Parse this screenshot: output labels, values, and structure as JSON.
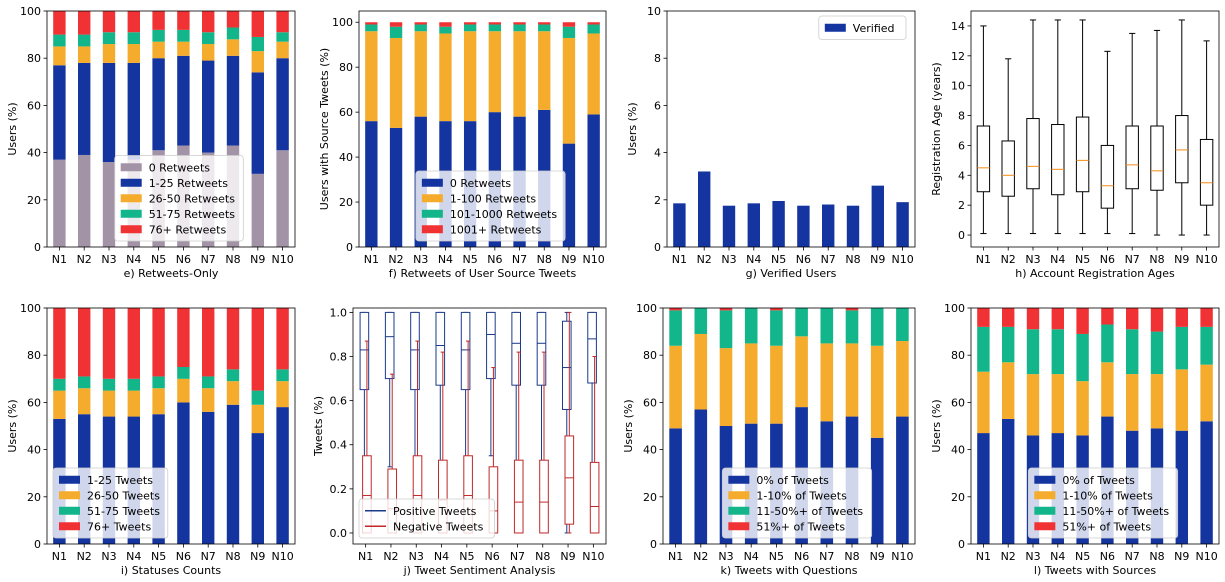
{
  "colors": {
    "gray": "#a393a6",
    "blue": "#1434a0",
    "orange": "#f5ac2d",
    "teal": "#13b68a",
    "red": "#f03234",
    "box": "#000000",
    "median": "#f58b18",
    "pos_box": "#1a3a8a",
    "neg_box": "#c0282a"
  },
  "chart_data": [
    {
      "id": "e",
      "type": "bar",
      "stacked": true,
      "xlabel": "e) Retweets-Only",
      "ylabel": "Users (%)",
      "ylim": [
        0,
        100
      ],
      "yticks": [
        0,
        20,
        40,
        60,
        80,
        100
      ],
      "categories": [
        "N1",
        "N2",
        "N3",
        "N4",
        "N5",
        "N6",
        "N7",
        "N8",
        "N9",
        "N10"
      ],
      "legend_loc": "lower-center",
      "series": [
        {
          "name": "0 Retweets",
          "color": "gray",
          "values": [
            37,
            39,
            36,
            37,
            41,
            43,
            40,
            43,
            31,
            41
          ]
        },
        {
          "name": "1-25 Retweets",
          "color": "blue",
          "values": [
            40,
            39,
            42,
            41,
            39,
            38,
            39,
            38,
            43,
            39
          ]
        },
        {
          "name": "26-50 Retweets",
          "color": "orange",
          "values": [
            8,
            7,
            8,
            8,
            7,
            6,
            7,
            7,
            9,
            7
          ]
        },
        {
          "name": "51-75 Retweets",
          "color": "teal",
          "values": [
            5,
            5,
            5,
            5,
            5,
            5,
            5,
            5,
            6,
            4
          ]
        },
        {
          "name": "76+ Retweets",
          "color": "red",
          "values": [
            10,
            10,
            9,
            9,
            8,
            8,
            9,
            7,
            11,
            9
          ]
        }
      ]
    },
    {
      "id": "f",
      "type": "bar",
      "stacked": true,
      "xlabel": "f) Retweets of User Source Tweets",
      "ylabel": "Users with Source Tweets (%)",
      "ylim": [
        0,
        105
      ],
      "yticks": [
        0,
        20,
        40,
        60,
        80,
        100
      ],
      "categories": [
        "N1",
        "N2",
        "N3",
        "N4",
        "N5",
        "N6",
        "N7",
        "N8",
        "N9",
        "N10"
      ],
      "legend_loc": "lower-center",
      "series": [
        {
          "name": "0 Retweets",
          "color": "blue",
          "values": [
            56,
            53,
            58,
            56,
            56,
            60,
            58,
            61,
            46,
            59
          ]
        },
        {
          "name": "1-100 Retweets",
          "color": "orange",
          "values": [
            40,
            40,
            38,
            39,
            40,
            36,
            38,
            35,
            47,
            36
          ]
        },
        {
          "name": "101-1000 Retweets",
          "color": "teal",
          "values": [
            3,
            5,
            3,
            3,
            3,
            3,
            3,
            3,
            5,
            4
          ]
        },
        {
          "name": "1001+ Retweets",
          "color": "red",
          "values": [
            1,
            2,
            1,
            2,
            1,
            1,
            1,
            1,
            2,
            1
          ]
        }
      ]
    },
    {
      "id": "g",
      "type": "bar",
      "stacked": false,
      "xlabel": "g) Verified Users",
      "ylabel": "Users (%)",
      "ylim": [
        0,
        10
      ],
      "yticks": [
        0,
        2,
        4,
        6,
        8,
        10
      ],
      "categories": [
        "N1",
        "N2",
        "N3",
        "N4",
        "N5",
        "N6",
        "N7",
        "N8",
        "N9",
        "N10"
      ],
      "legend_loc": "upper-right",
      "series": [
        {
          "name": "Verified",
          "color": "blue",
          "values": [
            1.85,
            3.2,
            1.75,
            1.85,
            1.95,
            1.75,
            1.8,
            1.75,
            2.6,
            1.9
          ]
        }
      ]
    },
    {
      "id": "h",
      "type": "box",
      "xlabel": "h) Account Registration Ages",
      "ylabel": "Registration Age (years)",
      "ylim": [
        -0.8,
        15
      ],
      "yticks": [
        0,
        2,
        4,
        6,
        8,
        10,
        12,
        14
      ],
      "categories": [
        "N1",
        "N2",
        "N3",
        "N4",
        "N5",
        "N6",
        "N7",
        "N8",
        "N9",
        "N10"
      ],
      "boxes": [
        {
          "min": 0.1,
          "q1": 2.9,
          "median": 4.5,
          "q3": 7.3,
          "max": 14.0
        },
        {
          "min": 0.1,
          "q1": 2.6,
          "median": 4.0,
          "q3": 6.3,
          "max": 11.8
        },
        {
          "min": 0.1,
          "q1": 3.1,
          "median": 4.6,
          "q3": 7.8,
          "max": 14.4
        },
        {
          "min": 0.1,
          "q1": 2.7,
          "median": 4.4,
          "q3": 7.4,
          "max": 14.4
        },
        {
          "min": 0.1,
          "q1": 2.9,
          "median": 5.0,
          "q3": 7.9,
          "max": 14.4
        },
        {
          "min": 0.1,
          "q1": 1.8,
          "median": 3.3,
          "q3": 6.0,
          "max": 12.3
        },
        {
          "min": 0.1,
          "q1": 3.1,
          "median": 4.7,
          "q3": 7.3,
          "max": 13.5
        },
        {
          "min": 0.0,
          "q1": 3.0,
          "median": 4.3,
          "q3": 7.3,
          "max": 13.7
        },
        {
          "min": 0.0,
          "q1": 3.5,
          "median": 5.7,
          "q3": 8.0,
          "max": 14.4
        },
        {
          "min": 0.0,
          "q1": 2.0,
          "median": 3.5,
          "q3": 6.4,
          "max": 13.0
        }
      ]
    },
    {
      "id": "i",
      "type": "bar",
      "stacked": true,
      "xlabel": "i) Statuses Counts",
      "ylabel": "Users (%)",
      "ylim": [
        0,
        100
      ],
      "yticks": [
        0,
        20,
        40,
        60,
        80,
        100
      ],
      "categories": [
        "N1",
        "N2",
        "N3",
        "N4",
        "N5",
        "N6",
        "N7",
        "N8",
        "N9",
        "N10"
      ],
      "legend_loc": "lower-left",
      "series": [
        {
          "name": "1-25 Tweets",
          "color": "blue",
          "values": [
            53,
            55,
            54,
            54,
            55,
            60,
            56,
            59,
            47,
            58
          ]
        },
        {
          "name": "26-50 Tweets",
          "color": "orange",
          "values": [
            12,
            11,
            11,
            11,
            11,
            10,
            10,
            10,
            12,
            11
          ]
        },
        {
          "name": "51-75 Tweets",
          "color": "teal",
          "values": [
            5,
            5,
            5,
            5,
            5,
            5,
            5,
            5,
            6,
            5
          ]
        },
        {
          "name": "76+ Tweets",
          "color": "red",
          "values": [
            30,
            29,
            30,
            30,
            29,
            25,
            29,
            26,
            35,
            26
          ]
        }
      ]
    },
    {
      "id": "j",
      "type": "box",
      "xlabel": "j) Tweet Sentiment Analysis",
      "ylabel": "Tweets (%)",
      "ylim": [
        -0.05,
        1.02
      ],
      "yticks": [
        0.0,
        0.2,
        0.4,
        0.6,
        0.8,
        1.0
      ],
      "ytick_labels": [
        "0.0",
        "0.2",
        "0.4",
        "0.6",
        "0.8",
        "1.0"
      ],
      "categories": [
        "N1",
        "N2",
        "N3",
        "N4",
        "N5",
        "N6",
        "N7",
        "N8",
        "N9",
        "N10"
      ],
      "legend_loc": "lower-left",
      "series": [
        {
          "name": "Positive Tweets",
          "color": "pos_box",
          "boxes": [
            {
              "min": 0.2,
              "q1": 0.65,
              "median": 0.83,
              "q3": 1.0,
              "max": 1.0
            },
            {
              "min": 0.3,
              "q1": 0.7,
              "median": 0.89,
              "q3": 1.0,
              "max": 1.0
            },
            {
              "min": 0.2,
              "q1": 0.65,
              "median": 0.83,
              "q3": 1.0,
              "max": 1.0
            },
            {
              "min": 0.25,
              "q1": 0.67,
              "median": 0.85,
              "q3": 1.0,
              "max": 1.0
            },
            {
              "min": 0.2,
              "q1": 0.65,
              "median": 0.83,
              "q3": 1.0,
              "max": 1.0
            },
            {
              "min": 0.35,
              "q1": 0.7,
              "median": 0.9,
              "q3": 1.0,
              "max": 1.0
            },
            {
              "min": 0.18,
              "q1": 0.67,
              "median": 0.86,
              "q3": 1.0,
              "max": 1.0
            },
            {
              "min": 0.2,
              "q1": 0.67,
              "median": 0.86,
              "q3": 1.0,
              "max": 1.0
            },
            {
              "min": 0.0,
              "q1": 0.56,
              "median": 0.75,
              "q3": 0.96,
              "max": 1.0
            },
            {
              "min": 0.3,
              "q1": 0.68,
              "median": 0.88,
              "q3": 1.0,
              "max": 1.0
            }
          ]
        },
        {
          "name": "Negative Tweets",
          "color": "neg_box",
          "boxes": [
            {
              "min": 0.0,
              "q1": 0.0,
              "median": 0.17,
              "q3": 0.35,
              "max": 0.87
            },
            {
              "min": 0.0,
              "q1": 0.0,
              "median": 0.11,
              "q3": 0.29,
              "max": 0.72
            },
            {
              "min": 0.0,
              "q1": 0.0,
              "median": 0.17,
              "q3": 0.35,
              "max": 0.87
            },
            {
              "min": 0.0,
              "q1": 0.0,
              "median": 0.15,
              "q3": 0.33,
              "max": 0.82
            },
            {
              "min": 0.0,
              "q1": 0.0,
              "median": 0.17,
              "q3": 0.35,
              "max": 0.87
            },
            {
              "min": 0.0,
              "q1": 0.0,
              "median": 0.1,
              "q3": 0.3,
              "max": 0.75
            },
            {
              "min": 0.0,
              "q1": 0.0,
              "median": 0.14,
              "q3": 0.33,
              "max": 0.82
            },
            {
              "min": 0.0,
              "q1": 0.0,
              "median": 0.14,
              "q3": 0.33,
              "max": 0.82
            },
            {
              "min": 0.0,
              "q1": 0.04,
              "median": 0.25,
              "q3": 0.44,
              "max": 1.0
            },
            {
              "min": 0.0,
              "q1": 0.0,
              "median": 0.12,
              "q3": 0.32,
              "max": 0.8
            }
          ]
        }
      ]
    },
    {
      "id": "k",
      "type": "bar",
      "stacked": true,
      "xlabel": "k) Tweets with Questions",
      "ylabel": "Users (%)",
      "ylim": [
        0,
        100
      ],
      "yticks": [
        0,
        20,
        40,
        60,
        80,
        100
      ],
      "categories": [
        "N1",
        "N2",
        "N3",
        "N4",
        "N5",
        "N6",
        "N7",
        "N8",
        "N9",
        "N10"
      ],
      "legend_loc": "lower-center",
      "series": [
        {
          "name": "0% of Tweets",
          "color": "blue",
          "values": [
            49,
            57,
            50,
            51,
            51,
            58,
            52,
            54,
            45,
            54
          ]
        },
        {
          "name": "1-10% of Tweets",
          "color": "orange",
          "values": [
            35,
            32,
            33,
            34,
            33,
            30,
            33,
            31,
            39,
            32
          ]
        },
        {
          "name": "11-50%+ of Tweets",
          "color": "teal",
          "values": [
            15,
            11,
            16,
            15,
            15,
            12,
            15,
            14,
            16,
            14
          ]
        },
        {
          "name": "51%+ of Tweets",
          "color": "red",
          "values": [
            1,
            0,
            1,
            0,
            1,
            0,
            0,
            1,
            0,
            0
          ]
        }
      ]
    },
    {
      "id": "l",
      "type": "bar",
      "stacked": true,
      "xlabel": "l) Tweets with Sources",
      "ylabel": "Users (%)",
      "ylim": [
        0,
        100
      ],
      "yticks": [
        0,
        20,
        40,
        60,
        80,
        100
      ],
      "categories": [
        "N1",
        "N2",
        "N3",
        "N4",
        "N5",
        "N6",
        "N7",
        "N8",
        "N9",
        "N10"
      ],
      "legend_loc": "lower-center",
      "series": [
        {
          "name": "0% of Tweets",
          "color": "blue",
          "values": [
            47,
            53,
            46,
            47,
            46,
            54,
            48,
            49,
            48,
            52
          ]
        },
        {
          "name": "1-10% of Tweets",
          "color": "orange",
          "values": [
            26,
            24,
            26,
            25,
            23,
            23,
            24,
            23,
            26,
            24
          ]
        },
        {
          "name": "11-50%+ of Tweets",
          "color": "teal",
          "values": [
            19,
            15,
            19,
            19,
            20,
            16,
            19,
            18,
            18,
            16
          ]
        },
        {
          "name": "51%+ of Tweets",
          "color": "red",
          "values": [
            8,
            8,
            9,
            9,
            11,
            7,
            9,
            10,
            8,
            8
          ]
        }
      ]
    }
  ]
}
